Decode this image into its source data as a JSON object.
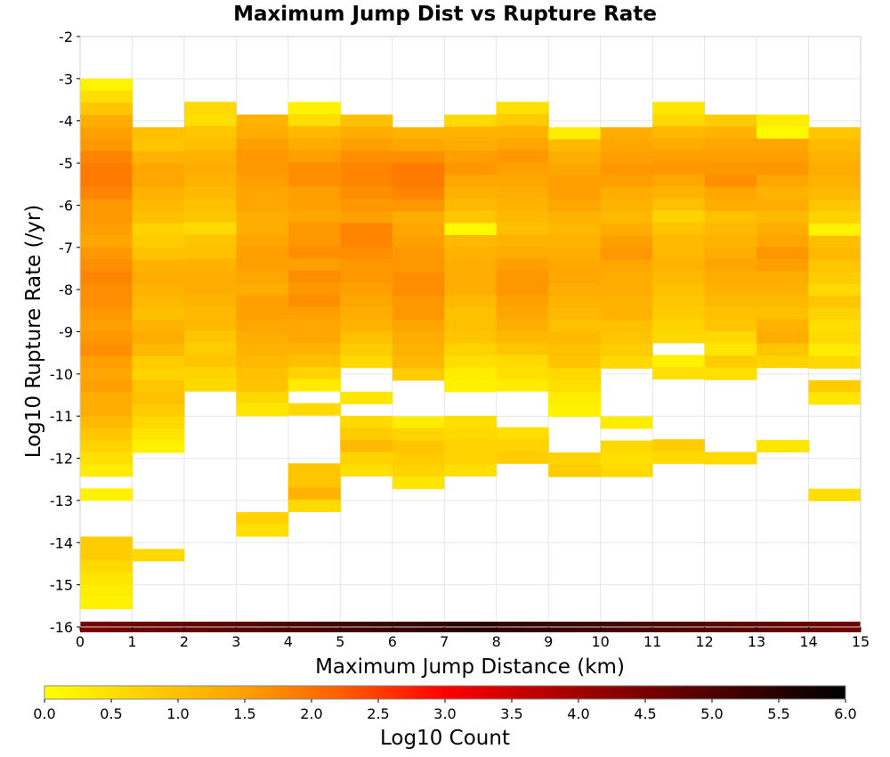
{
  "chart_data": {
    "type": "heatmap",
    "title": "Maximum Jump Dist vs Rupture Rate",
    "xlabel": "Maximum Jump Distance (km)",
    "ylabel": "Log10 Rupture Rate (/yr)",
    "xlim": [
      0,
      15
    ],
    "ylim": [
      -16,
      -2
    ],
    "x_ticks": [
      "0",
      "1",
      "2",
      "3",
      "4",
      "5",
      "6",
      "7",
      "8",
      "9",
      "10",
      "11",
      "12",
      "13",
      "14",
      "15"
    ],
    "y_ticks": [
      "-2",
      "-3",
      "-4",
      "-5",
      "-6",
      "-7",
      "-8",
      "-9",
      "-10",
      "-11",
      "-12",
      "-13",
      "-14",
      "-15",
      "-16"
    ],
    "grid": true,
    "x_bin_width": 1,
    "y_bin_height": 0.2857,
    "y_bottom_row_top": -15.875,
    "y_bins_from_top_start": -3.0,
    "columns": [
      {
        "x": 0,
        "top": -3.0,
        "values": [
          0.2,
          0.5,
          0.9,
          1.3,
          1.5,
          1.6,
          1.8,
          1.9,
          1.9,
          1.8,
          1.6,
          1.6,
          1.5,
          1.4,
          1.6,
          1.7,
          1.8,
          1.7,
          1.7,
          1.6,
          1.5,
          1.6,
          1.7,
          1.5,
          1.4,
          1.5,
          1.3,
          1.3,
          1.1,
          0.9,
          0.7,
          0.5,
          0.3,
          null,
          0.2,
          null,
          null,
          null,
          0.8,
          0.8,
          0.6,
          0.4,
          0.3,
          0.2
        ]
      },
      {
        "x": 1,
        "top": -4.15,
        "values": [
          1.0,
          0.9,
          1.2,
          1.4,
          1.4,
          1.2,
          1.1,
          1.0,
          0.7,
          0.8,
          1.0,
          1.2,
          1.3,
          1.2,
          1.1,
          1.0,
          1.2,
          1.3,
          1.1,
          0.8,
          0.7,
          0.9,
          1.0,
          0.8,
          0.6,
          0.4,
          0.2,
          null,
          null,
          null,
          null,
          null,
          null,
          null,
          null,
          0.6
        ]
      },
      {
        "x": 2,
        "top": -3.55,
        "values": [
          0.6,
          0.5,
          0.9,
          1.0,
          1.2,
          1.3,
          1.2,
          1.1,
          1.0,
          0.9,
          0.6,
          0.9,
          1.0,
          1.2,
          1.3,
          1.3,
          1.2,
          1.1,
          1.1,
          0.9,
          0.8,
          0.9,
          0.7,
          0.6
        ]
      },
      {
        "x": 3,
        "top": -3.85,
        "values": [
          1.2,
          1.3,
          1.5,
          1.6,
          1.6,
          1.5,
          1.4,
          1.4,
          1.3,
          1.3,
          1.4,
          1.5,
          1.5,
          1.4,
          1.3,
          1.5,
          1.5,
          1.4,
          1.3,
          1.2,
          1.1,
          1.0,
          0.9,
          0.6,
          0.4,
          null,
          null,
          null,
          null,
          null,
          null,
          null,
          null,
          0.7,
          0.5
        ]
      },
      {
        "x": 4,
        "top": -3.55,
        "values": [
          0.2,
          0.5,
          1.1,
          1.3,
          1.5,
          1.7,
          1.7,
          1.5,
          1.5,
          1.4,
          1.6,
          1.6,
          1.7,
          1.5,
          1.7,
          1.6,
          1.7,
          1.5,
          1.4,
          1.4,
          1.2,
          1.0,
          0.7,
          0.3,
          null,
          0.6,
          null,
          null,
          null,
          null,
          0.9,
          0.9,
          1.2,
          0.6
        ]
      },
      {
        "x": 5,
        "top": -3.85,
        "values": [
          1.0,
          1.3,
          1.5,
          1.7,
          1.8,
          1.8,
          1.7,
          1.6,
          1.5,
          1.8,
          1.8,
          1.7,
          1.6,
          1.6,
          1.5,
          1.4,
          1.3,
          1.2,
          1.0,
          0.8,
          0.6,
          null,
          null,
          0.4,
          null,
          0.6,
          0.8,
          1.1,
          0.7,
          0.5
        ]
      },
      {
        "x": 6,
        "top": -4.15,
        "values": [
          1.2,
          1.4,
          1.7,
          1.9,
          1.9,
          1.8,
          1.6,
          1.3,
          1.4,
          1.5,
          1.6,
          1.6,
          1.7,
          1.7,
          1.6,
          1.6,
          1.4,
          1.3,
          1.2,
          1.1,
          0.8,
          null,
          null,
          null,
          0.3,
          0.7,
          0.9,
          0.8,
          0.7,
          0.4
        ]
      },
      {
        "x": 7,
        "top": -3.85,
        "values": [
          0.6,
          1.2,
          1.3,
          1.5,
          1.6,
          1.4,
          1.2,
          1.1,
          0.9,
          0.1,
          1.1,
          1.2,
          1.3,
          1.3,
          1.3,
          1.1,
          1.0,
          1.0,
          0.9,
          0.7,
          0.5,
          0.3,
          0.2,
          null,
          null,
          0.5,
          0.6,
          0.7,
          0.7,
          0.5
        ]
      },
      {
        "x": 8,
        "top": -3.55,
        "values": [
          0.5,
          0.8,
          1.2,
          1.4,
          1.6,
          1.5,
          1.4,
          1.3,
          1.2,
          1.1,
          1.0,
          1.2,
          1.3,
          1.5,
          1.6,
          1.6,
          1.5,
          1.4,
          1.3,
          1.1,
          0.9,
          0.6,
          0.5,
          0.3,
          null,
          null,
          null,
          0.5,
          0.7,
          0.8
        ]
      },
      {
        "x": 9,
        "top": -4.15,
        "values": [
          0.3,
          1.1,
          1.3,
          1.4,
          1.5,
          1.5,
          1.4,
          1.2,
          1.1,
          1.2,
          1.3,
          1.4,
          1.4,
          1.3,
          1.2,
          1.1,
          1.0,
          1.1,
          1.0,
          0.9,
          0.6,
          0.5,
          0.3,
          0.2,
          null,
          null,
          null,
          0.7,
          0.8
        ]
      },
      {
        "x": 10,
        "top": -4.15,
        "values": [
          1.3,
          1.4,
          1.5,
          1.6,
          1.5,
          1.3,
          1.2,
          1.1,
          1.3,
          1.5,
          1.6,
          1.4,
          1.3,
          1.3,
          1.2,
          1.2,
          1.0,
          0.9,
          0.8,
          0.6,
          null,
          null,
          null,
          null,
          0.3,
          null,
          0.6,
          0.5,
          0.6
        ]
      },
      {
        "x": 11,
        "top": -3.55,
        "values": [
          0.4,
          0.6,
          1.1,
          1.3,
          1.5,
          1.6,
          1.4,
          1.2,
          1.0,
          0.7,
          0.9,
          1.1,
          1.1,
          1.2,
          1.1,
          1.0,
          0.9,
          0.8,
          0.7,
          0.6,
          null,
          0.2,
          0.5,
          null,
          null,
          null,
          null,
          null,
          0.8,
          0.6
        ]
      },
      {
        "x": 12,
        "top": -3.85,
        "values": [
          0.8,
          1.2,
          1.4,
          1.5,
          1.6,
          1.7,
          1.4,
          1.3,
          1.0,
          1.1,
          1.2,
          1.3,
          1.4,
          1.3,
          1.2,
          1.1,
          1.0,
          0.9,
          0.6,
          0.4,
          0.8,
          0.5,
          null,
          null,
          null,
          null,
          null,
          null,
          0.6
        ]
      },
      {
        "x": 13,
        "top": -3.85,
        "values": [
          0.3,
          0.1,
          1.4,
          1.5,
          1.6,
          1.4,
          1.2,
          1.3,
          1.1,
          1.3,
          1.4,
          1.6,
          1.5,
          1.3,
          1.2,
          1.1,
          1.0,
          1.2,
          1.3,
          0.9,
          0.7,
          null,
          null,
          null,
          null,
          null,
          null,
          0.4
        ]
      },
      {
        "x": 14,
        "top": -4.15,
        "values": [
          0.9,
          1.1,
          1.2,
          1.3,
          1.2,
          1.1,
          0.9,
          0.7,
          0.2,
          1.0,
          1.1,
          0.9,
          0.8,
          0.6,
          0.9,
          0.7,
          0.5,
          0.6,
          0.3,
          0.6,
          null,
          0.8,
          0.4,
          null,
          null,
          null,
          null,
          null,
          null,
          null,
          0.5
        ]
      }
    ],
    "bottom_row": {
      "y_from": -15.875,
      "y_to": -16.125,
      "value_start": 4.5,
      "value_mid": 5.5,
      "value_end": 4.6
    },
    "colorbar": {
      "label": "Log10 Count",
      "min": 0.0,
      "max": 6.0,
      "ticks": [
        "0.0",
        "0.5",
        "1.0",
        "1.5",
        "2.0",
        "2.5",
        "3.0",
        "3.5",
        "4.0",
        "4.5",
        "5.0",
        "5.5",
        "6.0"
      ],
      "colors": [
        "#ffff00",
        "#ffa000",
        "#ff6000",
        "#ff0000",
        "#a00000",
        "#000000"
      ],
      "stops": [
        0.0,
        1.5,
        2.2,
        3.0,
        4.0,
        6.0
      ]
    }
  }
}
